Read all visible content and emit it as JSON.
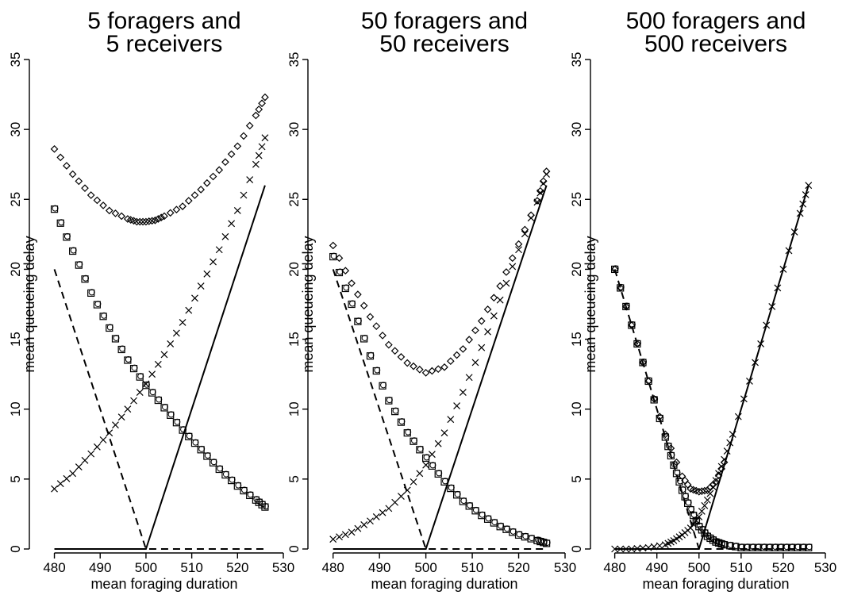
{
  "chart_data": [
    {
      "type": "scatter",
      "title": [
        "5 foragers and",
        "5 receivers"
      ],
      "xlabel": "mean foraging duration",
      "ylabel": "mean queueing delay",
      "xlim": [
        478,
        530
      ],
      "ylim": [
        0,
        35
      ],
      "xticks": [
        480,
        490,
        500,
        510,
        520,
        530
      ],
      "yticks": [
        0,
        5,
        10,
        15,
        20,
        25,
        30,
        35
      ],
      "grid": false,
      "series": [
        {
          "marker": "diamond",
          "x": [
            480,
            484,
            488,
            492,
            496,
            498,
            500,
            502,
            504,
            508,
            512,
            516,
            520,
            524,
            526
          ],
          "y": [
            28.6,
            26.8,
            25.3,
            24.2,
            23.6,
            23.4,
            23.4,
            23.5,
            23.8,
            24.5,
            25.7,
            27.1,
            28.8,
            31.0,
            32.3
          ]
        },
        {
          "marker": "cross",
          "x": [
            480,
            484,
            488,
            492,
            496,
            500,
            504,
            508,
            512,
            516,
            520,
            524,
            526
          ],
          "y": [
            4.3,
            5.4,
            6.8,
            8.3,
            10.0,
            11.8,
            13.9,
            16.2,
            18.8,
            21.4,
            24.2,
            27.5,
            29.4
          ]
        },
        {
          "marker": "square",
          "x": [
            480,
            484,
            488,
            492,
            496,
            500,
            504,
            508,
            512,
            516,
            520,
            524,
            526
          ],
          "y": [
            24.3,
            21.3,
            18.3,
            15.8,
            13.5,
            11.7,
            10.1,
            8.5,
            7.1,
            5.7,
            4.5,
            3.5,
            3.0
          ]
        },
        {
          "marker": "line-dashed",
          "x": [
            480,
            500,
            526
          ],
          "y": [
            20.0,
            0.0,
            0.0
          ]
        },
        {
          "marker": "line-solid",
          "x": [
            480,
            500,
            526
          ],
          "y": [
            0.0,
            0.0,
            26.0
          ]
        }
      ]
    },
    {
      "type": "scatter",
      "title": [
        "50 foragers and",
        "50 receivers"
      ],
      "xlabel": "mean foraging duration",
      "ylabel": "mean queueing delay",
      "xlim": [
        478,
        530
      ],
      "ylim": [
        0,
        35
      ],
      "xticks": [
        480,
        490,
        500,
        510,
        520,
        530
      ],
      "yticks": [
        0,
        5,
        10,
        15,
        20,
        25,
        30,
        35
      ],
      "grid": false,
      "series": [
        {
          "marker": "diamond",
          "x": [
            480,
            484,
            488,
            492,
            496,
            500,
            504,
            508,
            512,
            516,
            520,
            524,
            526
          ],
          "y": [
            21.7,
            19.0,
            16.6,
            14.6,
            13.3,
            12.6,
            13.0,
            14.3,
            16.3,
            18.8,
            21.8,
            24.9,
            27.0
          ]
        },
        {
          "marker": "cross",
          "x": [
            480,
            484,
            488,
            492,
            496,
            500,
            504,
            508,
            512,
            516,
            520,
            524,
            526
          ],
          "y": [
            0.7,
            1.2,
            2.0,
            2.9,
            4.2,
            6.0,
            8.3,
            11.2,
            14.4,
            17.8,
            21.4,
            24.8,
            26.8
          ]
        },
        {
          "marker": "square",
          "x": [
            480,
            484,
            488,
            492,
            496,
            500,
            504,
            508,
            512,
            516,
            520,
            524,
            526
          ],
          "y": [
            20.9,
            17.5,
            13.8,
            10.6,
            8.3,
            6.5,
            4.8,
            3.4,
            2.4,
            1.6,
            1.0,
            0.6,
            0.4
          ]
        },
        {
          "marker": "line-dashed",
          "x": [
            480,
            500,
            526
          ],
          "y": [
            20.0,
            0.0,
            0.0
          ]
        },
        {
          "marker": "line-solid",
          "x": [
            480,
            500,
            526
          ],
          "y": [
            0.0,
            0.0,
            26.0
          ]
        }
      ]
    },
    {
      "type": "scatter",
      "title": [
        "500 foragers and",
        "500 receivers"
      ],
      "xlabel": "mean foraging duration",
      "ylabel": "mean queueing delay",
      "xlim": [
        478,
        530
      ],
      "ylim": [
        0,
        35
      ],
      "xticks": [
        480,
        490,
        500,
        510,
        520,
        530
      ],
      "yticks": [
        0,
        5,
        10,
        15,
        20,
        25,
        30,
        35
      ],
      "grid": false,
      "series": [
        {
          "marker": "diamond",
          "x": [
            480,
            484,
            488,
            492,
            496,
            498,
            500,
            502,
            504,
            506
          ],
          "y": [
            20.0,
            16.0,
            12.0,
            8.2,
            5.2,
            4.3,
            4.1,
            4.2,
            4.8,
            6.2
          ]
        },
        {
          "marker": "cross",
          "x": [
            480,
            484,
            488,
            492,
            494,
            496,
            498,
            500,
            502,
            504,
            506,
            508,
            512,
            516,
            520,
            524,
            526
          ],
          "y": [
            0.0,
            0.0,
            0.1,
            0.3,
            0.6,
            1.0,
            1.5,
            2.3,
            3.5,
            4.9,
            6.4,
            8.2,
            12.0,
            16.0,
            20.0,
            24.0,
            26.0
          ]
        },
        {
          "marker": "square",
          "x": [
            480,
            484,
            488,
            492,
            494,
            496,
            498,
            500,
            502,
            504,
            506,
            510,
            514,
            518,
            522,
            526
          ],
          "y": [
            20.0,
            16.0,
            12.0,
            8.0,
            6.0,
            4.2,
            2.8,
            1.6,
            0.9,
            0.5,
            0.3,
            0.1,
            0.1,
            0.1,
            0.1,
            0.1
          ]
        },
        {
          "marker": "line-dashed",
          "x": [
            480,
            500,
            526
          ],
          "y": [
            20.0,
            0.0,
            0.0
          ]
        },
        {
          "marker": "line-solid",
          "x": [
            480,
            500,
            526
          ],
          "y": [
            0.0,
            0.0,
            26.0
          ]
        }
      ]
    }
  ]
}
